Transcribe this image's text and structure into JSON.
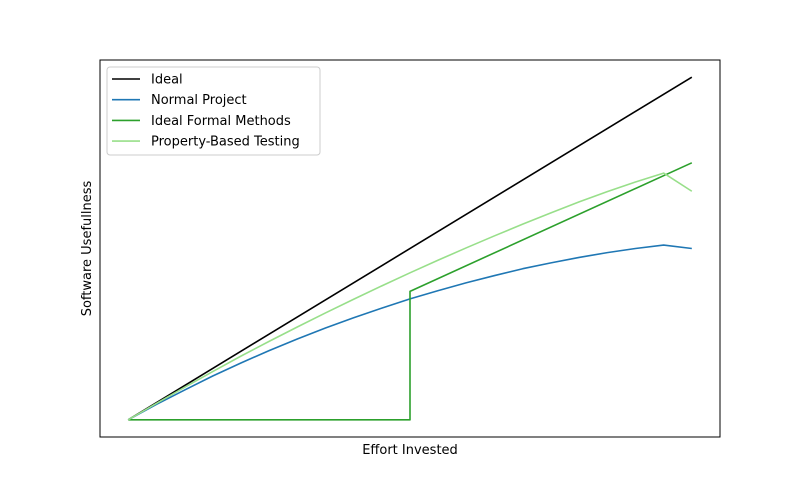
{
  "chart_data": {
    "type": "line",
    "title": "",
    "xlabel": "Effort Invested",
    "ylabel": "Software Usefullness",
    "xlim": [
      -0.05,
      1.05
    ],
    "ylim": [
      -0.05,
      1.05
    ],
    "x_ticks": [],
    "y_ticks": [],
    "grid": false,
    "legend_position": "upper-left",
    "series": [
      {
        "name": "Ideal",
        "color": "#000000",
        "x": [
          0,
          1
        ],
        "y": [
          0,
          1
        ]
      },
      {
        "name": "Normal Project",
        "color": "#1f77b4",
        "x": [
          0,
          0.05,
          0.1,
          0.15,
          0.2,
          0.25,
          0.3,
          0.35,
          0.4,
          0.45,
          0.5,
          0.55,
          0.6,
          0.65,
          0.7,
          0.75,
          0.8,
          0.85,
          0.9,
          0.95,
          1.0
        ],
        "y": [
          0,
          0.045,
          0.087,
          0.128,
          0.166,
          0.202,
          0.236,
          0.268,
          0.298,
          0.326,
          0.353,
          0.377,
          0.4,
          0.421,
          0.441,
          0.458,
          0.474,
          0.488,
          0.5,
          0.51,
          0.5
        ]
      },
      {
        "name": "Ideal Formal Methods",
        "color": "#2ca02c",
        "x": [
          0,
          0.5,
          0.5,
          1.0
        ],
        "y": [
          0,
          0,
          0.375,
          0.75
        ]
      },
      {
        "name": "Property-Based Testing",
        "color": "#98df8a",
        "x": [
          0,
          0.05,
          0.1,
          0.15,
          0.2,
          0.25,
          0.3,
          0.35,
          0.4,
          0.45,
          0.5,
          0.55,
          0.6,
          0.65,
          0.7,
          0.75,
          0.8,
          0.85,
          0.9,
          0.95,
          1.0
        ],
        "y": [
          0,
          0.048,
          0.095,
          0.141,
          0.186,
          0.229,
          0.271,
          0.312,
          0.352,
          0.391,
          0.429,
          0.466,
          0.502,
          0.537,
          0.571,
          0.604,
          0.636,
          0.666,
          0.694,
          0.72,
          0.667
        ]
      }
    ]
  }
}
